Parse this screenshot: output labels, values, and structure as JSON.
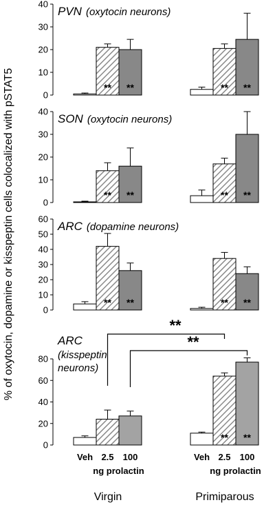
{
  "chart_data": {
    "type": "bar",
    "ylabel": "% of oxytocin, dopamine or kisspeptin cells colocalized with pSTAT5",
    "groups": [
      "Virgin",
      "Primiparous"
    ],
    "categories": [
      "Veh",
      "2.5",
      "100"
    ],
    "xunit": "ng prolactin",
    "colors": {
      "veh": "#ffffff",
      "low": "hatch",
      "high_oxy_da": "#888888",
      "high_kiss": "#a3a3a3"
    },
    "sig_label": "**",
    "panels": [
      {
        "title": "PVN",
        "subtitle": "(oxytocin neurons)",
        "subtitle2": "",
        "ylim": [
          0,
          40
        ],
        "yticks": [
          0,
          10,
          20,
          30,
          40
        ],
        "virgin": {
          "values": [
            0.5,
            21,
            20
          ],
          "errors": [
            0.4,
            1.5,
            4.5
          ],
          "sig": [
            "",
            "**",
            "**"
          ]
        },
        "primiparous": {
          "values": [
            2.5,
            20.5,
            24.5
          ],
          "errors": [
            1,
            2,
            11.5
          ],
          "sig": [
            "",
            "**",
            "**"
          ]
        }
      },
      {
        "title": "SON",
        "subtitle": "(oxytocin neurons)",
        "subtitle2": "",
        "ylim": [
          0,
          40
        ],
        "yticks": [
          0,
          10,
          20,
          30,
          40
        ],
        "virgin": {
          "values": [
            0.3,
            14,
            16
          ],
          "errors": [
            0.3,
            3.5,
            8
          ],
          "sig": [
            "",
            "**",
            "**"
          ]
        },
        "primiparous": {
          "values": [
            3,
            17,
            30
          ],
          "errors": [
            2.5,
            2.5,
            10
          ],
          "sig": [
            "",
            "**",
            "**"
          ]
        }
      },
      {
        "title": "ARC",
        "subtitle": "(dopamine neurons)",
        "subtitle2": "",
        "ylim": [
          0,
          60
        ],
        "yticks": [
          0,
          10,
          20,
          30,
          40,
          50,
          60
        ],
        "virgin": {
          "values": [
            4,
            42,
            26
          ],
          "errors": [
            1.5,
            8.5,
            5
          ],
          "sig": [
            "",
            "**",
            "**"
          ]
        },
        "primiparous": {
          "values": [
            1,
            34,
            24
          ],
          "errors": [
            0.8,
            4,
            4.5
          ],
          "sig": [
            "",
            "**",
            "**"
          ]
        }
      },
      {
        "title": "ARC",
        "subtitle": "(kisspeptin",
        "subtitle2": "neurons)",
        "ylim": [
          0,
          80
        ],
        "yticks": [
          0,
          20,
          40,
          60,
          80
        ],
        "virgin": {
          "values": [
            7,
            24,
            27
          ],
          "errors": [
            1.5,
            8.5,
            4.5
          ],
          "sig": [
            "",
            "",
            ""
          ]
        },
        "primiparous": {
          "values": [
            11,
            64,
            77
          ],
          "errors": [
            1,
            3,
            4
          ],
          "sig": [
            "",
            "**",
            "**"
          ]
        },
        "brackets": [
          {
            "from": "virgin.2.5",
            "to": "primiparous.2.5",
            "label": "**"
          },
          {
            "from": "virgin.100",
            "to": "primiparous.100",
            "label": "**"
          }
        ]
      }
    ]
  }
}
